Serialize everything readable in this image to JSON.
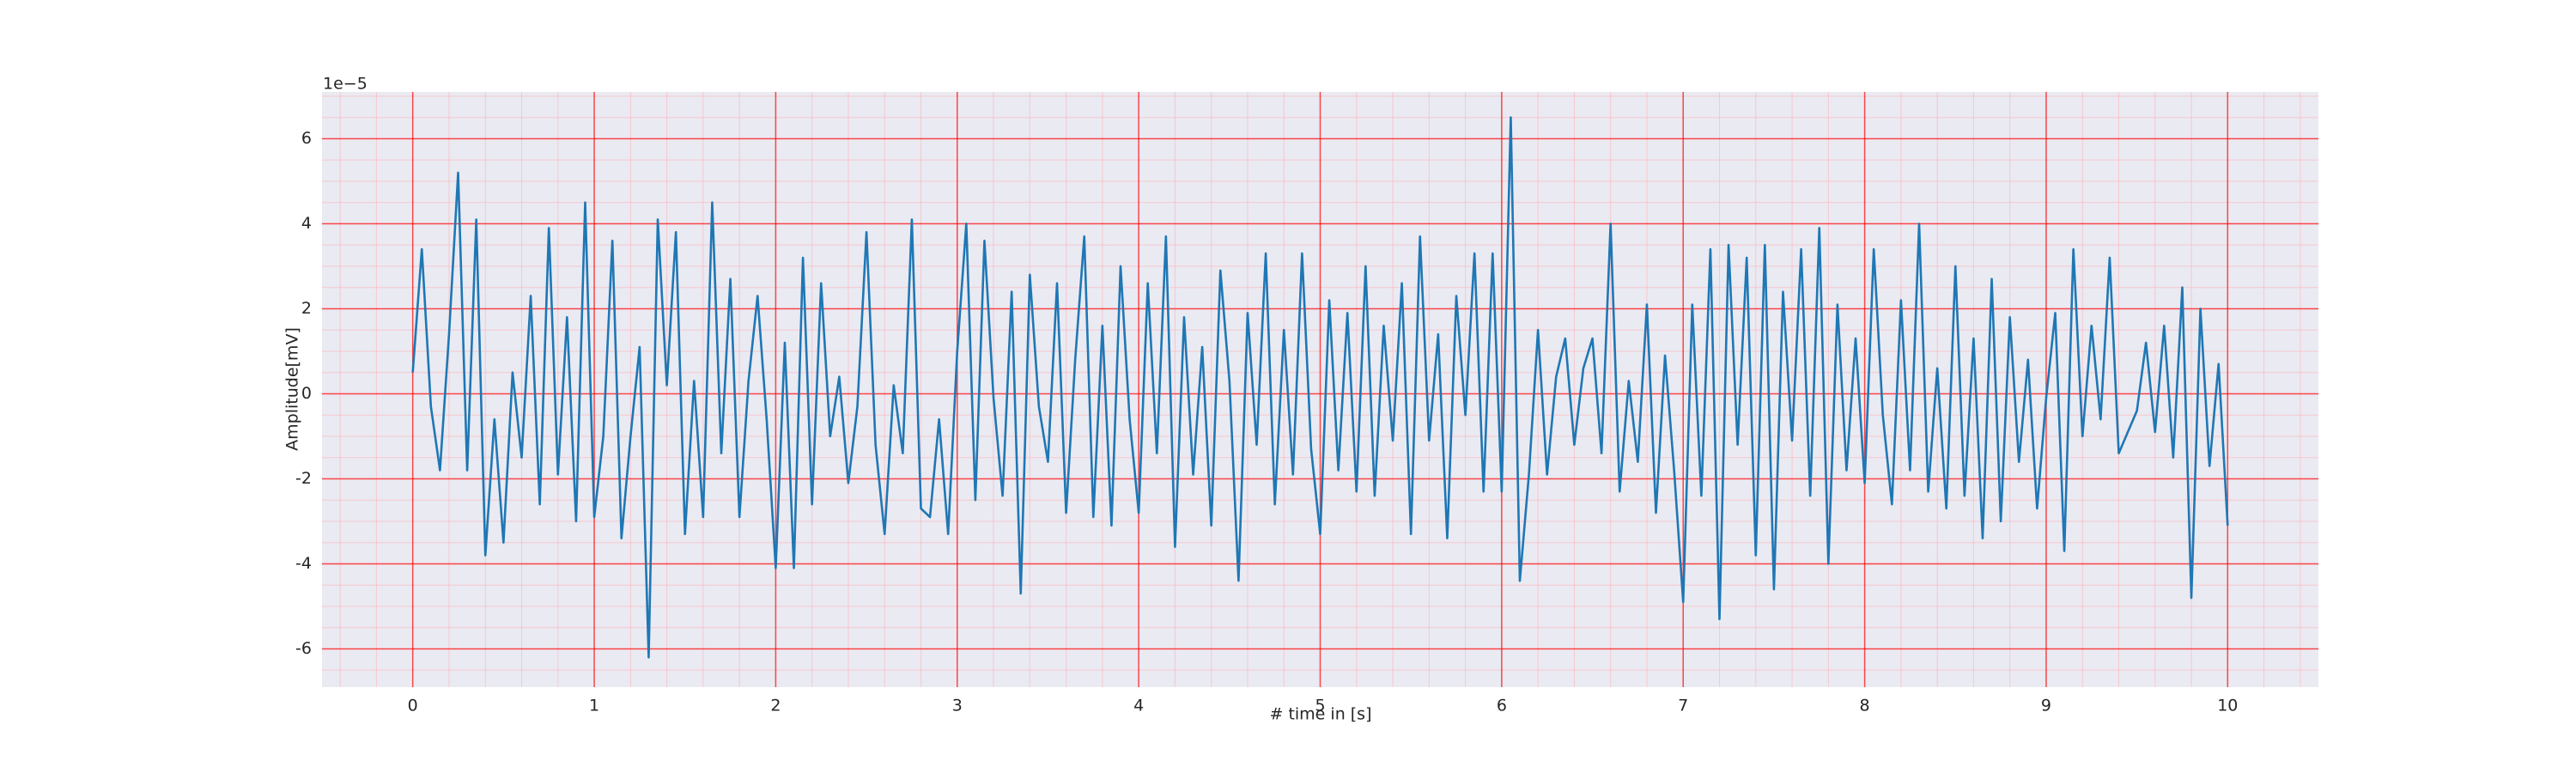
{
  "chart_data": {
    "type": "line",
    "xlabel": "# time in [s]",
    "ylabel": "Amplitude[mV]",
    "y_offset_text": "1e−5",
    "color": "#1f77b4",
    "grid": true,
    "grid_color": "#ff0000",
    "minor_grid_color": "#ffb0b8",
    "background": "#eaeaf2",
    "xlim": [
      -0.5,
      10.5
    ],
    "ylim": [
      -6.9,
      7.1
    ],
    "xticks": [
      0,
      1,
      2,
      3,
      4,
      5,
      6,
      7,
      8,
      9,
      10
    ],
    "yticks": [
      -6,
      -4,
      -2,
      0,
      2,
      4,
      6
    ],
    "xminorticks": [
      -0.4,
      -0.2,
      0.2,
      0.4,
      0.6,
      0.8,
      1.2,
      1.4,
      1.6,
      1.8,
      2.2,
      2.4,
      2.6,
      2.8,
      3.2,
      3.4,
      3.6,
      3.8,
      4.2,
      4.4,
      4.6,
      4.8,
      5.2,
      5.4,
      5.6,
      5.8,
      6.2,
      6.4,
      6.6,
      6.8,
      7.2,
      7.4,
      7.6,
      7.8,
      8.2,
      8.4,
      8.6,
      8.8,
      9.2,
      9.4,
      9.6,
      9.8,
      10.2,
      10.4
    ],
    "yminorticks": [
      -6.5,
      -5.5,
      -5,
      -4.5,
      -3.5,
      -3,
      -2.5,
      -1.5,
      -1,
      -0.5,
      0.5,
      1,
      1.5,
      2.5,
      3,
      3.5,
      4.5,
      5,
      5.5,
      6.5,
      7
    ],
    "x": [
      0,
      0.05,
      0.1,
      0.15,
      0.2,
      0.25,
      0.3,
      0.35,
      0.4,
      0.45,
      0.5,
      0.55,
      0.6,
      0.65,
      0.7,
      0.75,
      0.8,
      0.85,
      0.9,
      0.95,
      1,
      1.05,
      1.1,
      1.15,
      1.2,
      1.25,
      1.3,
      1.35,
      1.4,
      1.45,
      1.5,
      1.55,
      1.6,
      1.65,
      1.7,
      1.75,
      1.8,
      1.85,
      1.9,
      1.95,
      2,
      2.05,
      2.1,
      2.15,
      2.2,
      2.25,
      2.3,
      2.35,
      2.4,
      2.45,
      2.5,
      2.55,
      2.6,
      2.65,
      2.7,
      2.75,
      2.8,
      2.85,
      2.9,
      2.95,
      3,
      3.05,
      3.1,
      3.15,
      3.2,
      3.25,
      3.3,
      3.35,
      3.4,
      3.45,
      3.5,
      3.55,
      3.6,
      3.65,
      3.7,
      3.75,
      3.8,
      3.85,
      3.9,
      3.95,
      4,
      4.05,
      4.1,
      4.15,
      4.2,
      4.25,
      4.3,
      4.35,
      4.4,
      4.45,
      4.5,
      4.55,
      4.6,
      4.65,
      4.7,
      4.75,
      4.8,
      4.85,
      4.9,
      4.95,
      5,
      5.05,
      5.1,
      5.15,
      5.2,
      5.25,
      5.3,
      5.35,
      5.4,
      5.45,
      5.5,
      5.55,
      5.6,
      5.65,
      5.7,
      5.75,
      5.8,
      5.85,
      5.9,
      5.95,
      6,
      6.05,
      6.1,
      6.15,
      6.2,
      6.25,
      6.3,
      6.35,
      6.4,
      6.45,
      6.5,
      6.55,
      6.6,
      6.65,
      6.7,
      6.75,
      6.8,
      6.85,
      6.9,
      6.95,
      7,
      7.05,
      7.1,
      7.15,
      7.2,
      7.25,
      7.3,
      7.35,
      7.4,
      7.45,
      7.5,
      7.55,
      7.6,
      7.65,
      7.7,
      7.75,
      7.8,
      7.85,
      7.9,
      7.95,
      8,
      8.05,
      8.1,
      8.15,
      8.2,
      8.25,
      8.3,
      8.35,
      8.4,
      8.45,
      8.5,
      8.55,
      8.6,
      8.65,
      8.7,
      8.75,
      8.8,
      8.85,
      8.9,
      8.95,
      9,
      9.05,
      9.1,
      9.15,
      9.2,
      9.25,
      9.3,
      9.35,
      9.4,
      9.45,
      9.5,
      9.55,
      9.6,
      9.65,
      9.7,
      9.75,
      9.8,
      9.85,
      9.9,
      9.95,
      10
    ],
    "values": [
      0.5,
      3.4,
      -0.3,
      -1.8,
      1.4,
      5.2,
      -1.8,
      4.1,
      -3.8,
      -0.6,
      -3.5,
      0.5,
      -1.5,
      2.3,
      -2.6,
      3.9,
      -1.9,
      1.8,
      -3.0,
      4.5,
      -2.9,
      -1.0,
      3.6,
      -3.4,
      -1.0,
      1.1,
      -6.2,
      4.1,
      0.2,
      3.8,
      -3.3,
      0.3,
      -2.9,
      4.5,
      -1.4,
      2.7,
      -2.9,
      0.3,
      2.3,
      -0.6,
      -4.1,
      1.2,
      -4.1,
      3.2,
      -2.6,
      2.6,
      -1.0,
      0.4,
      -2.1,
      -0.3,
      3.8,
      -1.2,
      -3.3,
      0.2,
      -1.4,
      4.1,
      -2.7,
      -2.9,
      -0.6,
      -3.3,
      1.0,
      4.0,
      -2.5,
      3.6,
      -0.1,
      -2.4,
      2.4,
      -4.7,
      2.8,
      -0.3,
      -1.6,
      2.6,
      -2.8,
      0.8,
      3.7,
      -2.9,
      1.6,
      -3.1,
      3.0,
      -0.6,
      -2.8,
      2.6,
      -1.4,
      3.7,
      -3.6,
      1.8,
      -1.9,
      1.1,
      -3.1,
      2.9,
      0.3,
      -4.4,
      1.9,
      -1.2,
      3.3,
      -2.6,
      1.5,
      -1.9,
      3.3,
      -1.3,
      -3.3,
      2.2,
      -1.8,
      1.9,
      -2.3,
      3.0,
      -2.4,
      1.6,
      -1.1,
      2.6,
      -3.3,
      3.7,
      -1.1,
      1.4,
      -3.4,
      2.3,
      -0.5,
      3.3,
      -2.3,
      3.3,
      -2.3,
      6.5,
      -4.4,
      -1.9,
      1.5,
      -1.9,
      0.4,
      1.3,
      -1.2,
      0.6,
      1.3,
      -1.4,
      4.0,
      -2.3,
      0.3,
      -1.6,
      2.1,
      -2.8,
      0.9,
      -1.8,
      -4.9,
      2.1,
      -2.4,
      3.4,
      -5.3,
      3.5,
      -1.2,
      3.2,
      -3.8,
      3.5,
      -4.6,
      2.4,
      -1.1,
      3.4,
      -2.4,
      3.9,
      -4.0,
      2.1,
      -1.8,
      1.3,
      -2.1,
      3.4,
      -0.5,
      -2.6,
      2.2,
      -1.8,
      4.0,
      -2.3,
      0.6,
      -2.7,
      3.0,
      -2.4,
      1.3,
      -3.4,
      2.7,
      -3.0,
      1.8,
      -1.6,
      0.8,
      -2.7,
      -0.1,
      1.9,
      -3.7,
      3.4,
      -1.0,
      1.6,
      -0.6,
      3.2,
      -1.4,
      -0.9,
      -0.4,
      1.2,
      -0.9,
      1.6,
      -1.5,
      2.5,
      -4.8,
      2.0,
      -1.7,
      0.7,
      -3.1
    ]
  }
}
